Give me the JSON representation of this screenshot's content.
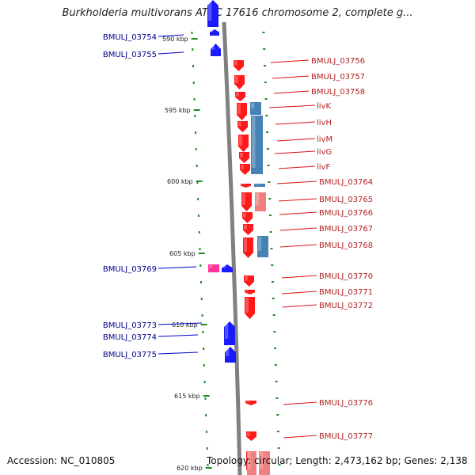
{
  "title": "Burkholderia multivorans ATCC 17616 chromosome 2, complete g...",
  "footer": {
    "accession": "Accession: NC_010805",
    "topology": "Topology: circular; Length: 2,473,162 bp; Genes: 2,138"
  },
  "ticks": [
    "590 kbp",
    "595 kbp",
    "600 kbp",
    "605 kbp",
    "610 kbp",
    "615 kbp",
    "620 kbp"
  ],
  "colors": {
    "left_strand": "#1a1aff",
    "right_strand": "#ff1a1a",
    "right_rna": "#4682b4",
    "pseudo": "#ff3399",
    "left_label": "#00008b",
    "right_label": "#b22222",
    "backbone": "#808080",
    "tick": "#228b22"
  },
  "left_genes": [
    "BMULJ_03754",
    "BMULJ_03755",
    "BMULJ_03769",
    "BMULJ_03773",
    "BMULJ_03774",
    "BMULJ_03775"
  ],
  "right_genes": [
    "BMULJ_03756",
    "BMULJ_03757",
    "BMULJ_03758",
    "livK",
    "livH",
    "livM",
    "livG",
    "livF",
    "BMULJ_03764",
    "BMULJ_03765",
    "BMULJ_03766",
    "BMULJ_03767",
    "BMULJ_03768",
    "BMULJ_03770",
    "BMULJ_03771",
    "BMULJ_03772",
    "BMULJ_03776",
    "BMULJ_03777"
  ]
}
